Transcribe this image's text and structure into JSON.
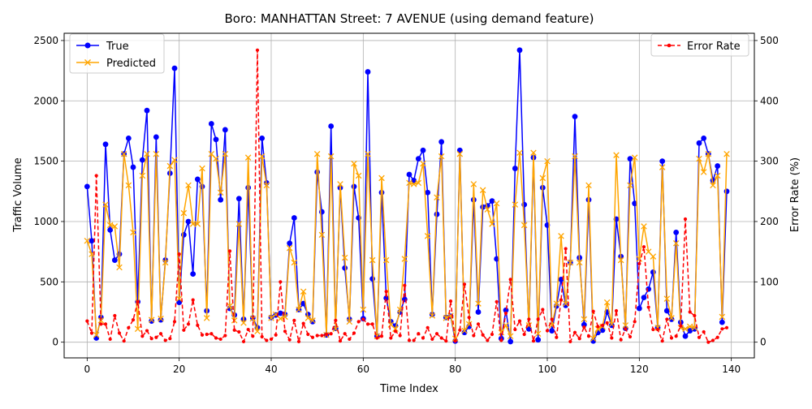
{
  "chart_data": {
    "type": "line",
    "title": "Boro: MANHATTAN Street: 7 AVENUE (using demand feature)",
    "xlabel": "Time Index",
    "ylabel_left": "Traffic Volume",
    "ylabel_right": "Error Rate (%)",
    "xlim": [
      -5,
      145
    ],
    "ylim_left": [
      -130,
      2560
    ],
    "ylim_right": [
      -26,
      512
    ],
    "x_ticks": [
      0,
      20,
      40,
      60,
      80,
      100,
      120,
      140
    ],
    "y_ticks_left": [
      0,
      500,
      1000,
      1500,
      2000,
      2500
    ],
    "y_ticks_right": [
      0,
      100,
      200,
      300,
      400,
      500
    ],
    "grid": true,
    "legend_left_position": "upper-left",
    "legend_right_position": "upper-right",
    "series": [
      {
        "name": "True",
        "axis": "left",
        "color": "#0000ff",
        "marker": "circle",
        "line_style": "solid",
        "values": [
          1290,
          840,
          35,
          205,
          1640,
          930,
          680,
          730,
          1560,
          1690,
          1450,
          335,
          1510,
          1920,
          175,
          1700,
          185,
          680,
          1400,
          2270,
          330,
          890,
          1000,
          565,
          1350,
          1290,
          260,
          1810,
          1680,
          1180,
          1760,
          280,
          225,
          1190,
          190,
          1280,
          200,
          120,
          1690,
          1320,
          205,
          225,
          240,
          230,
          820,
          1030,
          270,
          320,
          230,
          170,
          1410,
          1080,
          60,
          1790,
          115,
          1280,
          615,
          190,
          1290,
          1030,
          195,
          2240,
          525,
          50,
          1240,
          365,
          170,
          135,
          250,
          355,
          1390,
          1340,
          1520,
          1590,
          1240,
          230,
          1060,
          1660,
          205,
          215,
          10,
          1590,
          80,
          130,
          1180,
          250,
          1120,
          1130,
          1170,
          690,
          30,
          265,
          5,
          1440,
          2420,
          1140,
          110,
          1530,
          20,
          1280,
          970,
          95,
          300,
          520,
          305,
          660,
          1870,
          700,
          145,
          1180,
          10,
          80,
          100,
          250,
          140,
          1020,
          710,
          115,
          1520,
          1150,
          280,
          370,
          440,
          580,
          120,
          1500,
          260,
          190,
          910,
          165,
          50,
          95,
          110,
          1650,
          1690,
          1560,
          1340,
          1460,
          165,
          1250
        ]
      },
      {
        "name": "Predicted",
        "axis": "left",
        "color": "#ffa500",
        "marker": "x",
        "line_style": "solid",
        "values": [
          840,
          730,
          60,
          180,
          1140,
          970,
          960,
          620,
          1560,
          1300,
          910,
          110,
          1380,
          1560,
          185,
          1560,
          195,
          660,
          1460,
          1510,
          360,
          1070,
          1300,
          980,
          980,
          1440,
          200,
          1560,
          1520,
          1240,
          1560,
          300,
          180,
          980,
          160,
          1530,
          195,
          90,
          1540,
          1300,
          200,
          230,
          195,
          210,
          780,
          660,
          270,
          420,
          200,
          180,
          1560,
          890,
          60,
          1540,
          110,
          1310,
          700,
          170,
          1480,
          1380,
          270,
          1560,
          680,
          50,
          1360,
          680,
          145,
          110,
          270,
          690,
          1320,
          1310,
          1320,
          1480,
          880,
          220,
          1200,
          1540,
          200,
          220,
          30,
          1560,
          95,
          150,
          1310,
          320,
          1260,
          1100,
          980,
          1150,
          80,
          140,
          50,
          1140,
          1570,
          970,
          140,
          1570,
          70,
          1360,
          1500,
          140,
          320,
          880,
          320,
          660,
          1540,
          660,
          190,
          1300,
          30,
          110,
          130,
          330,
          150,
          1550,
          680,
          140,
          1300,
          1530,
          690,
          960,
          750,
          710,
          120,
          1450,
          360,
          200,
          820,
          120,
          110,
          130,
          120,
          1520,
          1410,
          1560,
          1300,
          1380,
          210,
          1560
        ]
      },
      {
        "name": "Error Rate",
        "axis": "right",
        "color": "#ff0000",
        "marker": "dot",
        "line_style": "dashed",
        "values": [
          35,
          15,
          276,
          30,
          30,
          5,
          44,
          15,
          2,
          24,
          37,
          67,
          10,
          19,
          6,
          8,
          14,
          3,
          6,
          34,
          146,
          20,
          30,
          70,
          28,
          12,
          13,
          14,
          7,
          5,
          11,
          151,
          20,
          17,
          1,
          21,
          10,
          484,
          9,
          3,
          5,
          12,
          100,
          18,
          4,
          36,
          1,
          31,
          13,
          8,
          11,
          11,
          13,
          14,
          36,
          2,
          14,
          5,
          15,
          34,
          38,
          30,
          30,
          7,
          10,
          84,
          7,
          18,
          11,
          94,
          3,
          3,
          14,
          7,
          24,
          5,
          14,
          7,
          2,
          68,
          2,
          20,
          96,
          41,
          11,
          30,
          12,
          3,
          13,
          67,
          3,
          48,
          104,
          21,
          35,
          13,
          38,
          2,
          38,
          54,
          19,
          38,
          8,
          70,
          155,
          1,
          16,
          6,
          25,
          10,
          51,
          26,
          28,
          32,
          7,
          52,
          4,
          22,
          9,
          34,
          130,
          158,
          58,
          21,
          21,
          2,
          38,
          7,
          10,
          27,
          204,
          50,
          44,
          8,
          17,
          0,
          3,
          8,
          22,
          24
        ]
      }
    ]
  }
}
